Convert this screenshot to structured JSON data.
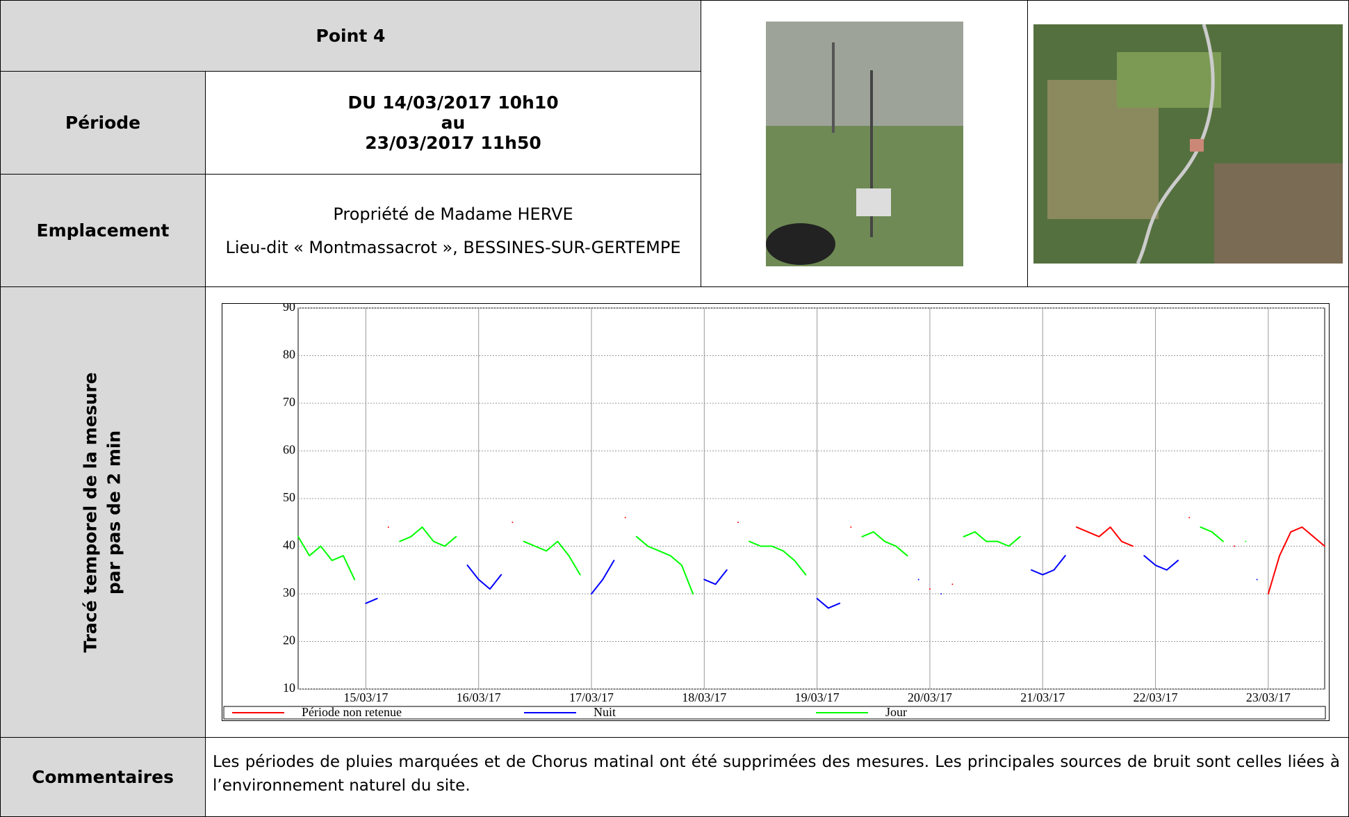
{
  "header": {
    "title": "Point 4"
  },
  "periode": {
    "label": "Période",
    "lines": [
      "DU 14/03/2017 10h10",
      "au",
      "23/03/2017 11h50"
    ]
  },
  "emplacement": {
    "label": "Emplacement",
    "lines": [
      "Propriété de Madame HERVE",
      "Lieu-dit « Montmassacrot », BESSINES-SUR-GERTEMPE"
    ]
  },
  "trace": {
    "label_lines": [
      "Tracé temporel de la mesure",
      "par pas de 2 min"
    ]
  },
  "commentaires": {
    "label": "Commentaires",
    "text": "Les périodes de pluies marquées et de Chorus matinal ont été supprimées des mesures. Les principales sources de bruit sont celles liées à l’environnement naturel du site."
  },
  "chart_data": {
    "type": "line",
    "x": [
      14.4,
      14.5,
      14.6,
      14.7,
      14.8,
      14.9,
      15.0,
      15.1,
      15.2,
      15.3,
      15.4,
      15.5,
      15.6,
      15.7,
      15.8,
      15.9,
      16.0,
      16.1,
      16.2,
      16.3,
      16.4,
      16.5,
      16.6,
      16.7,
      16.8,
      16.9,
      17.0,
      17.1,
      17.2,
      17.3,
      17.4,
      17.5,
      17.6,
      17.7,
      17.8,
      17.9,
      18.0,
      18.1,
      18.2,
      18.3,
      18.4,
      18.5,
      18.6,
      18.7,
      18.8,
      18.9,
      19.0,
      19.1,
      19.2,
      19.3,
      19.4,
      19.5,
      19.6,
      19.7,
      19.8,
      19.9,
      20.0,
      20.1,
      20.2,
      20.3,
      20.4,
      20.5,
      20.6,
      20.7,
      20.8,
      20.9,
      21.0,
      21.1,
      21.2,
      21.3,
      21.4,
      21.5,
      21.6,
      21.7,
      21.8,
      21.9,
      22.0,
      22.1,
      22.2,
      22.3,
      22.4,
      22.5,
      22.6,
      22.7,
      22.8,
      22.9,
      23.0,
      23.1,
      23.2,
      23.3,
      23.4,
      23.5
    ],
    "series": [
      {
        "name": "Période non retenue",
        "color": "#ff0000",
        "values": [
          null,
          null,
          null,
          null,
          null,
          null,
          null,
          null,
          44,
          null,
          null,
          null,
          null,
          null,
          null,
          null,
          null,
          null,
          null,
          45,
          null,
          null,
          null,
          null,
          null,
          null,
          null,
          null,
          null,
          46,
          null,
          null,
          null,
          null,
          null,
          null,
          null,
          null,
          null,
          45,
          null,
          null,
          null,
          null,
          null,
          null,
          null,
          null,
          null,
          44,
          null,
          null,
          null,
          null,
          null,
          null,
          31,
          null,
          32,
          null,
          null,
          null,
          null,
          null,
          null,
          null,
          null,
          null,
          null,
          44,
          43,
          42,
          44,
          41,
          40,
          null,
          null,
          null,
          null,
          46,
          null,
          null,
          null,
          40,
          null,
          null,
          30,
          38,
          43,
          44,
          42,
          40
        ]
      },
      {
        "name": "Nuit",
        "color": "#0000ff",
        "values": [
          null,
          null,
          null,
          null,
          null,
          null,
          28,
          29,
          null,
          null,
          null,
          null,
          null,
          null,
          null,
          36,
          33,
          31,
          34,
          null,
          null,
          null,
          null,
          null,
          null,
          null,
          30,
          33,
          37,
          null,
          null,
          null,
          null,
          null,
          null,
          null,
          33,
          32,
          35,
          null,
          null,
          null,
          null,
          null,
          null,
          null,
          29,
          27,
          28,
          null,
          null,
          null,
          null,
          null,
          null,
          33,
          null,
          30,
          null,
          null,
          null,
          null,
          null,
          null,
          null,
          35,
          34,
          35,
          38,
          null,
          null,
          null,
          null,
          null,
          null,
          38,
          36,
          35,
          37,
          null,
          null,
          null,
          null,
          null,
          null,
          33,
          null,
          null,
          null,
          null,
          null,
          null
        ]
      },
      {
        "name": "Jour",
        "color": "#00ff00",
        "values": [
          42,
          38,
          40,
          37,
          38,
          33,
          null,
          null,
          null,
          41,
          42,
          44,
          41,
          40,
          42,
          null,
          null,
          null,
          null,
          null,
          41,
          40,
          39,
          41,
          38,
          34,
          null,
          null,
          null,
          null,
          42,
          40,
          39,
          38,
          36,
          30,
          null,
          null,
          null,
          null,
          41,
          40,
          40,
          39,
          37,
          34,
          null,
          null,
          null,
          null,
          42,
          43,
          41,
          40,
          38,
          null,
          null,
          null,
          null,
          42,
          43,
          41,
          41,
          40,
          42,
          null,
          null,
          null,
          null,
          null,
          null,
          null,
          null,
          null,
          null,
          null,
          null,
          null,
          null,
          null,
          44,
          43,
          41,
          null,
          41,
          null,
          null,
          null,
          null,
          null,
          null,
          null
        ]
      }
    ],
    "xlim": [
      14.4,
      23.5
    ],
    "xticks": [
      {
        "value": 15,
        "label": "15/03/17"
      },
      {
        "value": 16,
        "label": "16/03/17"
      },
      {
        "value": 17,
        "label": "17/03/17"
      },
      {
        "value": 18,
        "label": "18/03/17"
      },
      {
        "value": 19,
        "label": "19/03/17"
      },
      {
        "value": 20,
        "label": "20/03/17"
      },
      {
        "value": 21,
        "label": "21/03/17"
      },
      {
        "value": 22,
        "label": "22/03/17"
      },
      {
        "value": 23,
        "label": "23/03/17"
      }
    ],
    "ylim": [
      10,
      90
    ],
    "yticks": [
      10,
      20,
      30,
      40,
      50,
      60,
      70,
      80,
      90
    ],
    "grid": true
  }
}
